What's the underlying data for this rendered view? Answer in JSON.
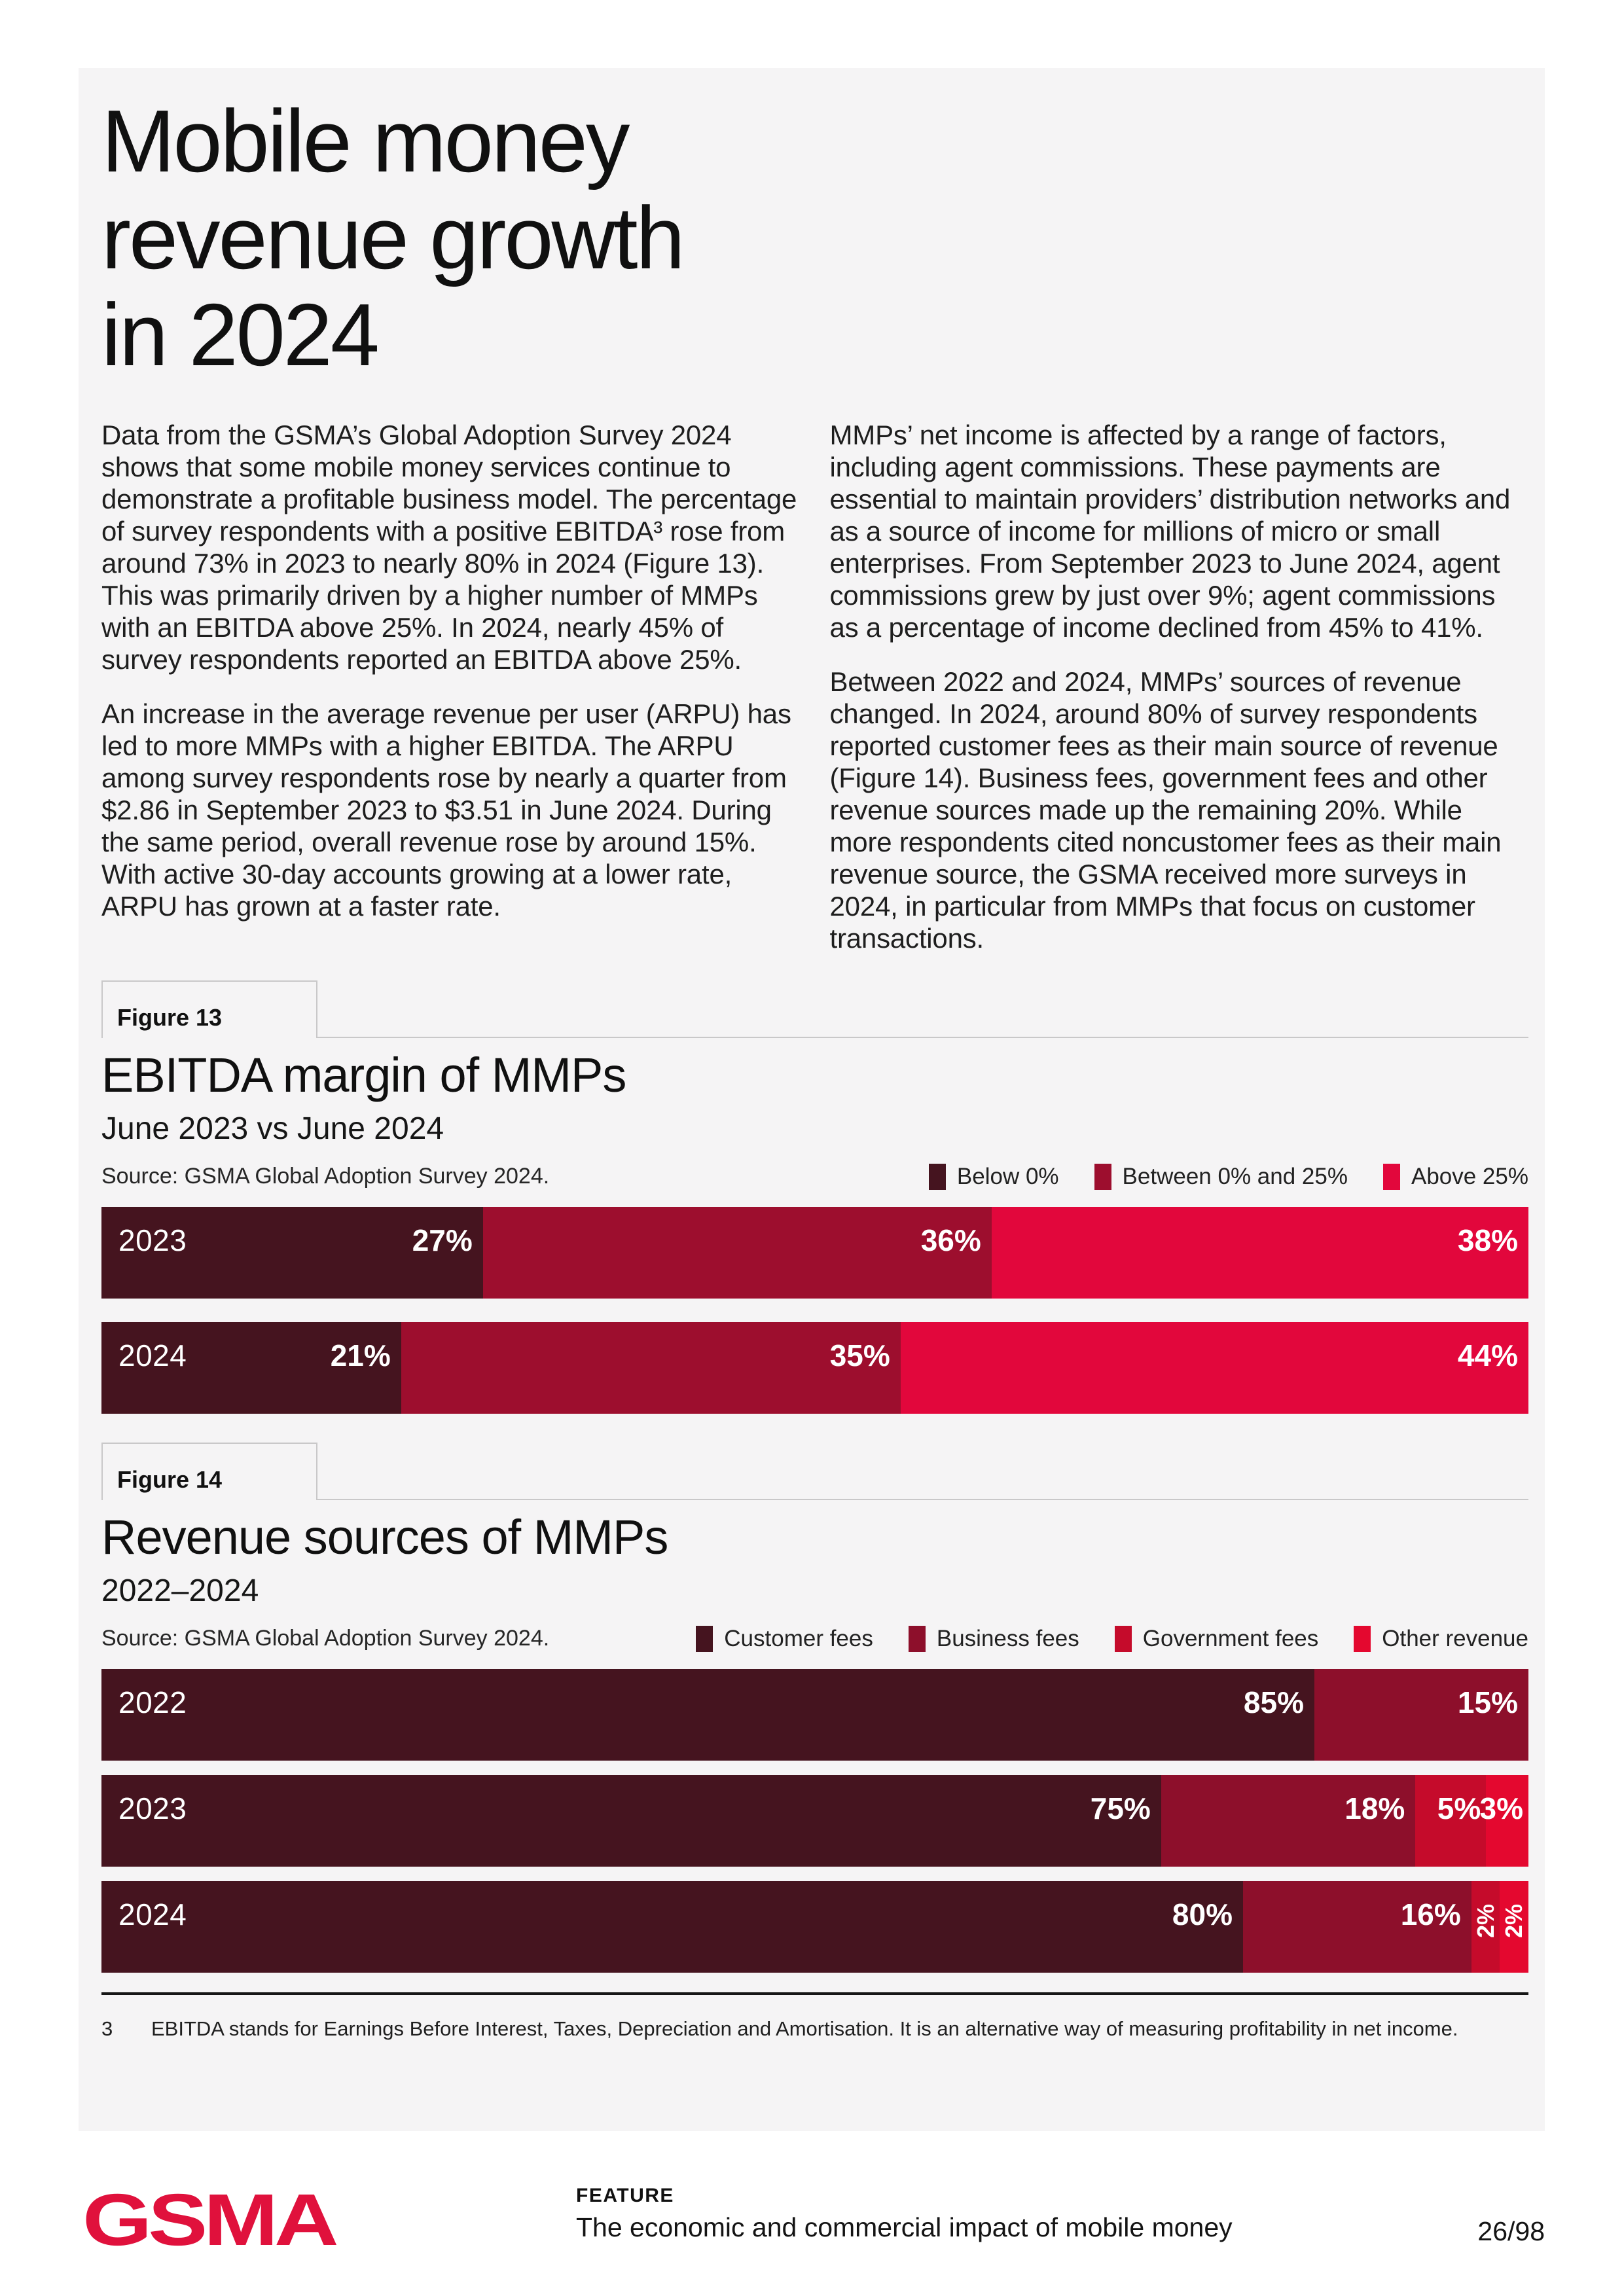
{
  "page": {
    "background": "#FFFFFF",
    "card_background": "#F5F4F5",
    "title_lines": [
      "Mobile money",
      "revenue growth",
      "in 2024"
    ]
  },
  "body": {
    "left": [
      "Data from the GSMA’s Global Adoption Survey 2024 shows that some mobile money services continue to demonstrate a profitable business model. The percentage of survey respondents with a positive EBITDA³ rose from around 73% in 2023 to nearly 80% in 2024 (Figure 13). This was primarily driven by a higher number of MMPs with an EBITDA above 25%. In 2024, nearly 45% of survey respondents reported an EBITDA above 25%.",
      "An increase in the average revenue per user (ARPU) has led to more MMPs with a higher EBITDA. The ARPU among survey respondents rose by nearly a quarter from $2.86 in September 2023 to $3.51 in June 2024. During the same period, overall revenue rose by around 15%. With active 30-day accounts growing at a lower rate, ARPU has grown at a faster rate."
    ],
    "right": [
      "MMPs’ net income is affected by a range of factors, including agent commissions. These payments are essential to maintain providers’ distribution networks and as a source of income for millions of micro or small enterprises. From September 2023 to June 2024, agent commissions grew by just over 9%; agent commissions as a percentage of income declined from 45% to 41%.",
      "Between 2022 and 2024, MMPs’ sources of revenue changed. In 2024, around 80% of survey respondents reported customer fees as their main source of revenue (Figure 14). Business fees, government fees and other revenue sources made up the remaining 20%. While more respondents cited noncustomer fees as their main revenue source, the GSMA received more surveys in 2024, in particular from MMPs that focus on customer transactions."
    ]
  },
  "figures": [
    {
      "tab": "Figure 13",
      "title": "EBITDA margin of MMPs",
      "subtitle": "June 2023 vs June 2024",
      "source": "Source: GSMA Global Adoption Survey 2024.",
      "legend": [
        {
          "label": "Below 0%",
          "color": "#45141F"
        },
        {
          "label": "Between 0% and 25%",
          "color": "#9D0E2E"
        },
        {
          "label": "Above 25%",
          "color": "#E2073C"
        }
      ],
      "bars": [
        {
          "year": "2023",
          "segments": [
            {
              "value": 27,
              "label": "27%",
              "color": "#45141F"
            },
            {
              "value": 36,
              "label": "36%",
              "color": "#9D0E2E"
            },
            {
              "value": 38,
              "label": "38%",
              "color": "#E2073C"
            }
          ]
        },
        {
          "year": "2024",
          "segments": [
            {
              "value": 21,
              "label": "21%",
              "color": "#45141F"
            },
            {
              "value": 35,
              "label": "35%",
              "color": "#9D0E2E"
            },
            {
              "value": 44,
              "label": "44%",
              "color": "#E2073C"
            }
          ]
        }
      ]
    },
    {
      "tab": "Figure 14",
      "title": "Revenue sources of MMPs",
      "subtitle": "2022–2024",
      "source": "Source: GSMA Global Adoption Survey 2024.",
      "legend": [
        {
          "label": "Customer fees",
          "color": "#45141F"
        },
        {
          "label": "Business fees",
          "color": "#8D0F2B"
        },
        {
          "label": "Government fees",
          "color": "#C50B2B"
        },
        {
          "label": "Other revenue",
          "color": "#E4082F"
        }
      ],
      "bars": [
        {
          "year": "2022",
          "segments": [
            {
              "value": 85,
              "label": "85%",
              "color": "#45141F"
            },
            {
              "value": 15,
              "label": "15%",
              "color": "#8D0F2B"
            }
          ]
        },
        {
          "year": "2023",
          "segments": [
            {
              "value": 75,
              "label": "75%",
              "color": "#45141F"
            },
            {
              "value": 18,
              "label": "18%",
              "color": "#8D0F2B"
            },
            {
              "value": 5,
              "label": "5%",
              "color": "#C50B2B"
            },
            {
              "value": 3,
              "label": "3%",
              "color": "#E4082F"
            }
          ]
        },
        {
          "year": "2024",
          "segments": [
            {
              "value": 80,
              "label": "80%",
              "color": "#45141F"
            },
            {
              "value": 16,
              "label": "16%",
              "color": "#8D0F2B"
            },
            {
              "value": 2,
              "label": "2%",
              "color": "#C50B2B"
            },
            {
              "value": 2,
              "label": "2%",
              "color": "#E4082F"
            }
          ]
        }
      ]
    }
  ],
  "footnote": {
    "number": "3",
    "text": "EBITDA stands for Earnings Before Interest, Taxes, Depreciation and Amortisation. It is an alternative way of measuring profitability in net income."
  },
  "footer": {
    "logo": "GSMA",
    "logo_color": "#E0113C",
    "kicker": "FEATURE",
    "title": "The economic and commercial impact of mobile money",
    "page": "26/98"
  },
  "chart_data": [
    {
      "type": "bar",
      "stacked": true,
      "orientation": "horizontal",
      "title": "EBITDA margin of MMPs",
      "subtitle": "June 2023 vs June 2024",
      "unit": "%",
      "categories": [
        "2023",
        "2024"
      ],
      "series": [
        {
          "name": "Below 0%",
          "values": [
            27,
            21
          ]
        },
        {
          "name": "Between 0% and 25%",
          "values": [
            36,
            35
          ]
        },
        {
          "name": "Above 25%",
          "values": [
            38,
            44
          ]
        }
      ],
      "legend_position": "top-right",
      "grid": false
    },
    {
      "type": "bar",
      "stacked": true,
      "orientation": "horizontal",
      "title": "Revenue sources of MMPs",
      "subtitle": "2022–2024",
      "unit": "%",
      "categories": [
        "2022",
        "2023",
        "2024"
      ],
      "series": [
        {
          "name": "Customer fees",
          "values": [
            85,
            75,
            80
          ]
        },
        {
          "name": "Business fees",
          "values": [
            15,
            18,
            16
          ]
        },
        {
          "name": "Government fees",
          "values": [
            0,
            5,
            2
          ]
        },
        {
          "name": "Other revenue",
          "values": [
            0,
            3,
            2
          ]
        }
      ],
      "legend_position": "top-right",
      "grid": false
    }
  ]
}
